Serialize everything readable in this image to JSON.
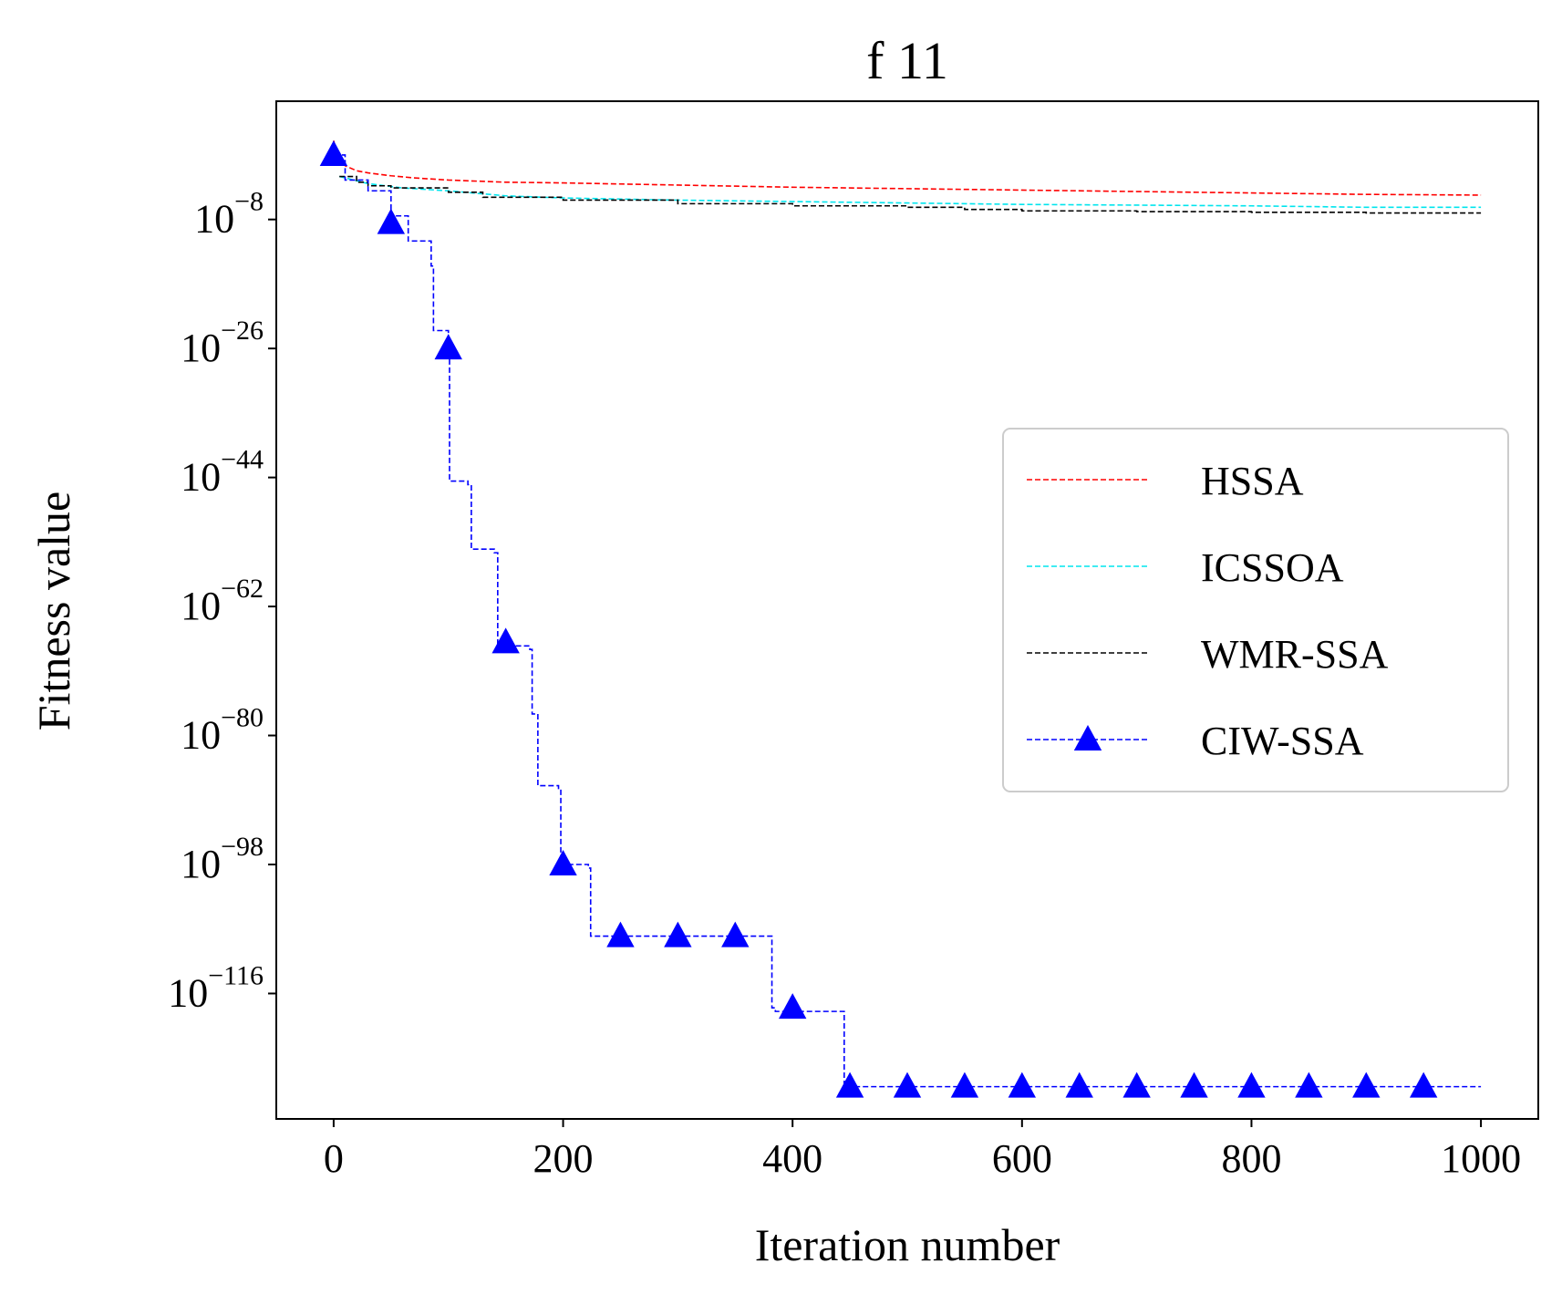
{
  "chart_data": {
    "type": "line",
    "title": "f 11",
    "xlabel": "Iteration number",
    "ylabel": "Fitness value",
    "xlim": [
      -50,
      1050
    ],
    "ylim_log10": [
      -133.5,
      8.5
    ],
    "yscale": "log",
    "grid": false,
    "legend_position": "center-right",
    "x_ticks": [
      {
        "value": 0,
        "label": "0"
      },
      {
        "value": 200,
        "label": "200"
      },
      {
        "value": 400,
        "label": "400"
      },
      {
        "value": 600,
        "label": "600"
      },
      {
        "value": 800,
        "label": "800"
      },
      {
        "value": 1000,
        "label": "1000"
      }
    ],
    "y_ticks": [
      {
        "value": -8,
        "base": "10",
        "exp": "−8"
      },
      {
        "value": -26,
        "base": "10",
        "exp": "−26"
      },
      {
        "value": -44,
        "base": "10",
        "exp": "−44"
      },
      {
        "value": -62,
        "base": "10",
        "exp": "−62"
      },
      {
        "value": -80,
        "base": "10",
        "exp": "−80"
      },
      {
        "value": -98,
        "base": "10",
        "exp": "−98"
      },
      {
        "value": -116,
        "base": "10",
        "exp": "−116"
      }
    ],
    "series": [
      {
        "name": "HSSA",
        "color": "#ff0000",
        "marker": "none",
        "step": false,
        "x": [
          0,
          2,
          5,
          10,
          20,
          30,
          50,
          70,
          100,
          150,
          200,
          300,
          400,
          500,
          600,
          700,
          800,
          900,
          1000
        ],
        "log10_y": [
          3,
          1.5,
          0.5,
          -0.5,
          -1.2,
          -1.5,
          -1.9,
          -2.2,
          -2.5,
          -2.8,
          -2.9,
          -3.2,
          -3.5,
          -3.7,
          -3.9,
          -4.1,
          -4.3,
          -4.5,
          -4.6
        ]
      },
      {
        "name": "ICSSOA",
        "color": "#00e5ee",
        "marker": "none",
        "step": false,
        "x": [
          5,
          30,
          60,
          100,
          150,
          200,
          300,
          400,
          500,
          600,
          700,
          800,
          900,
          1000
        ],
        "log10_y": [
          -2.0,
          -3.0,
          -3.6,
          -4.0,
          -4.7,
          -5.0,
          -5.3,
          -5.5,
          -5.7,
          -5.9,
          -6.0,
          -6.1,
          -6.3,
          -6.3
        ]
      },
      {
        "name": "WMR-SSA",
        "color": "#000000",
        "marker": "none",
        "step": true,
        "x": [
          5,
          20,
          30,
          50,
          100,
          130,
          200,
          300,
          400,
          500,
          550,
          600,
          700,
          800,
          900,
          1000
        ],
        "log10_y": [
          -2.0,
          -2.8,
          -3.3,
          -3.6,
          -4.2,
          -4.9,
          -5.3,
          -5.8,
          -6.1,
          -6.3,
          -6.6,
          -6.8,
          -6.9,
          -7.0,
          -7.1,
          -7.1
        ]
      },
      {
        "name": "CIW-SSA",
        "color": "#0000ff",
        "marker": "triangle",
        "step": true,
        "x": [
          0,
          10,
          30,
          50,
          65,
          85,
          87,
          100,
          101,
          117,
          120,
          140,
          143,
          171,
          173,
          178,
          196,
          198,
          222,
          224,
          382,
          385,
          445,
          447,
          1000
        ],
        "log10_y": [
          1,
          -2.5,
          -4.0,
          -7.5,
          -11.0,
          -14.5,
          -23.5,
          -25.5,
          -44.5,
          -45.0,
          -54.0,
          -54.5,
          -67.5,
          -68.0,
          -77.0,
          -87.0,
          -87.5,
          -98.0,
          -98.5,
          -108.0,
          -118.0,
          -118.5,
          -129.0,
          -129.0,
          -129.0
        ],
        "markers_x": [
          0,
          50,
          100,
          150,
          200,
          250,
          300,
          350,
          400,
          450,
          500,
          550,
          600,
          650,
          700,
          750,
          800,
          850,
          900,
          950
        ],
        "markers_log10_y": [
          1,
          -8.5,
          -26,
          -67,
          -98,
          -108,
          -108,
          -108,
          -118,
          -129,
          -129,
          -129,
          -129,
          -129,
          -129,
          -129,
          -129,
          -129,
          -129,
          -129
        ]
      }
    ]
  }
}
